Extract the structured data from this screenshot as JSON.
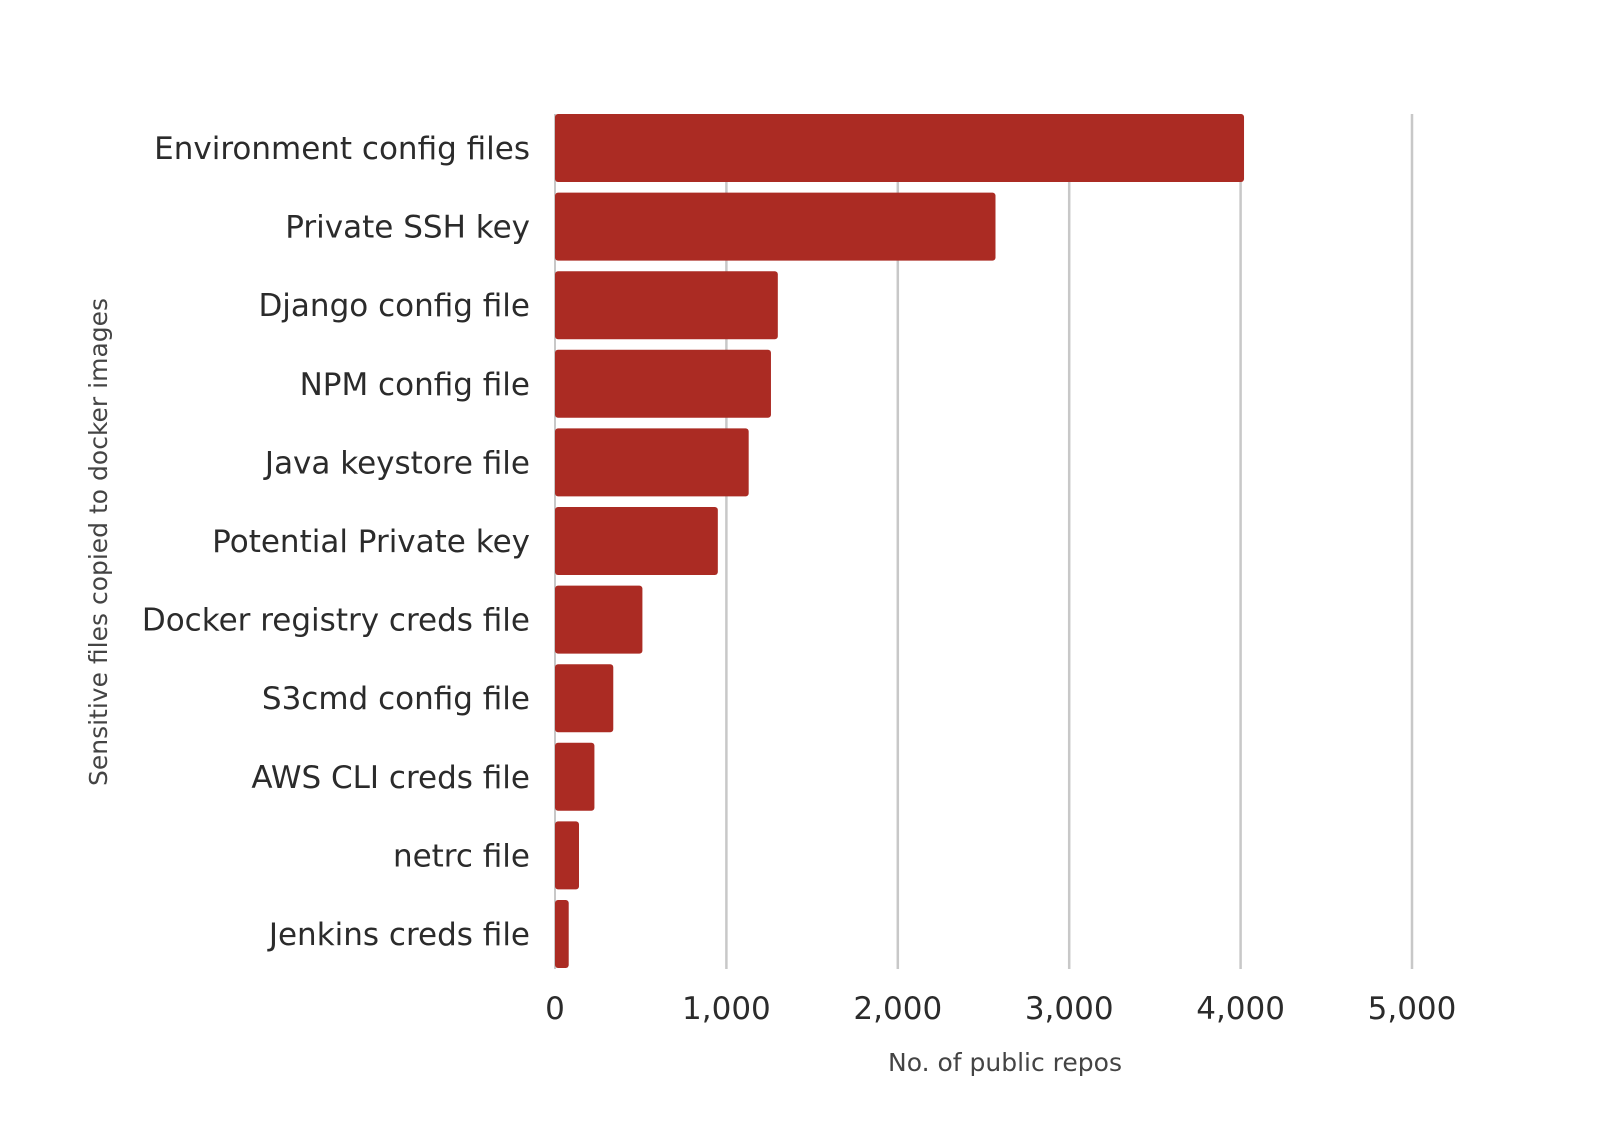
{
  "chart_data": {
    "type": "bar",
    "orientation": "horizontal",
    "categories": [
      "Environment config files",
      "Private SSH key",
      "Django config file",
      "NPM config file",
      "Java keystore file",
      "Potential Private key",
      "Docker registry creds file",
      "S3cmd config file",
      "AWS CLI creds file",
      "netrc file",
      "Jenkins creds file"
    ],
    "values": [
      4020,
      2570,
      1300,
      1260,
      1130,
      950,
      510,
      340,
      230,
      140,
      80
    ],
    "xlabel": "No. of public repos",
    "ylabel": "Sensitive files copied to docker images",
    "xlim": [
      0,
      5000
    ],
    "xticks": [
      0,
      1000,
      2000,
      3000,
      4000,
      5000
    ],
    "xtick_labels": [
      "0",
      "1,000",
      "2,000",
      "3,000",
      "4,000",
      "5,000"
    ],
    "grid": "vertical",
    "legend": "none",
    "colors": {
      "bar": "#ab2b23",
      "grid": "#c8c8c8"
    }
  }
}
